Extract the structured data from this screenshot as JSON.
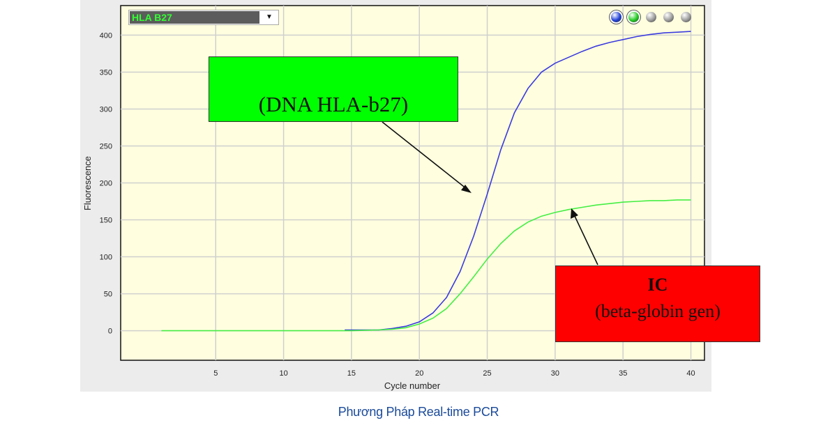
{
  "selector": {
    "value": "HLA B27",
    "arrow_icon": "chevron-down-icon"
  },
  "series_toggles": [
    {
      "color": "#2040d8",
      "active": true
    },
    {
      "color": "#22cc22",
      "active": true
    },
    {
      "color": "#9a9a9a",
      "active": false
    },
    {
      "color": "#9a9a9a",
      "active": false
    },
    {
      "color": "#9a9a9a",
      "active": false
    }
  ],
  "annotations": {
    "dna": "(DNA HLA-b27)",
    "ic_title": "IC",
    "ic_subtitle": "(beta-globin gen)"
  },
  "caption": "Phương Pháp Real-time PCR",
  "colors": {
    "plot_bg": "#ffffdf",
    "grid": "#cfcfcf",
    "blue": "#3b3bdf",
    "green": "#44ee44"
  },
  "chart_data": {
    "type": "line",
    "xlabel": "Cycle number",
    "ylabel": "Fluorescence",
    "xlim": [
      -2,
      41
    ],
    "ylim": [
      -40,
      440
    ],
    "xticks": [
      5,
      10,
      15,
      20,
      25,
      30,
      35,
      40
    ],
    "yticks": [
      0,
      50,
      100,
      150,
      200,
      250,
      300,
      350,
      400
    ],
    "grid": true,
    "series": [
      {
        "color": "#3b3bdf",
        "x": [
          14.5,
          16,
          17,
          18,
          19,
          20,
          21,
          22,
          23,
          24,
          25,
          26,
          27,
          28,
          29,
          30,
          31,
          32,
          33,
          34,
          35,
          36,
          37,
          38,
          39,
          40
        ],
        "y": [
          1,
          1,
          1,
          3,
          6,
          12,
          24,
          45,
          80,
          128,
          185,
          245,
          295,
          328,
          350,
          362,
          370,
          378,
          385,
          390,
          394,
          398,
          401,
          403,
          404,
          405
        ]
      },
      {
        "color": "#44ee44",
        "x": [
          1,
          5,
          10,
          15,
          17,
          18,
          19,
          20,
          21,
          22,
          23,
          24,
          25,
          26,
          27,
          28,
          29,
          30,
          31,
          32,
          33,
          34,
          35,
          36,
          37,
          38,
          39,
          40
        ],
        "y": [
          0,
          0,
          0,
          0,
          1,
          2,
          4,
          9,
          17,
          30,
          50,
          73,
          97,
          118,
          135,
          147,
          155,
          160,
          164,
          167,
          170,
          172,
          174,
          175,
          176,
          176,
          177,
          177
        ]
      }
    ]
  }
}
